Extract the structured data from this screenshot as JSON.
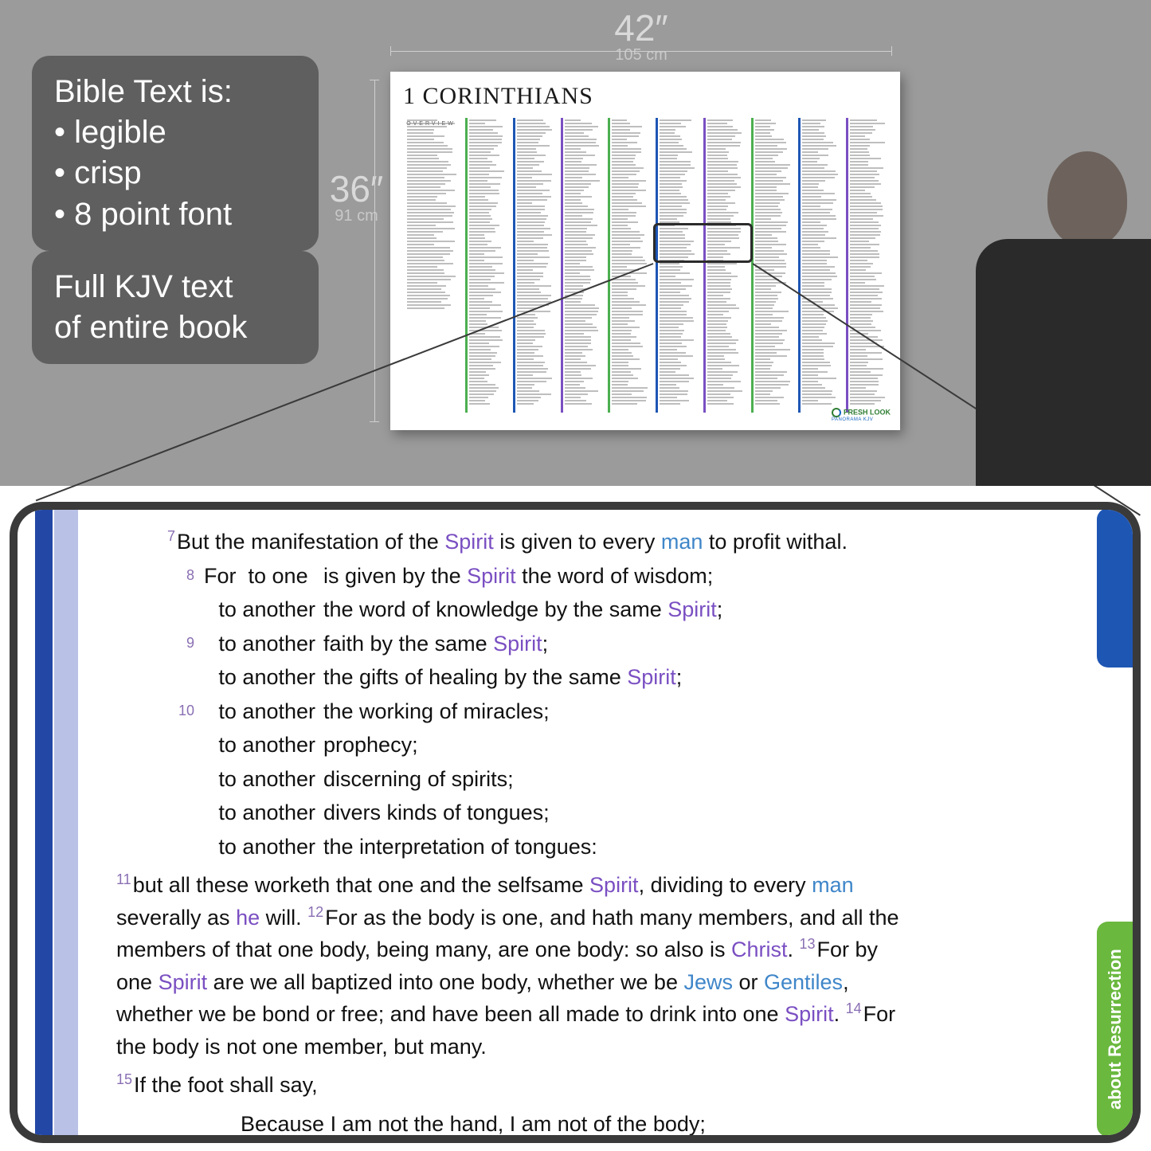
{
  "colors": {
    "scene_bg": "#9b9b9b",
    "callout_bg": "#5f5f5f",
    "callout_text": "#ffffff",
    "dim_text": "#d9d9d9",
    "dim_sub": "#c9c9c9",
    "ruler": "#cfcfcf",
    "poster_bg": "#ffffff",
    "poster_title": "#1a1a1a",
    "zoom_border": "#3a3a3a",
    "zoom_bg": "#ffffff",
    "stripe_dark": "#2347a5",
    "stripe_light": "#b9c2e6",
    "verse_num": "#8a6fb3",
    "word_spirit": "#7a4fc2",
    "word_blue": "#3f86c9",
    "tab_blue": "#1e56b4",
    "tab_green": "#6ab83e",
    "spines": [
      "#4caf50",
      "#1e56b4",
      "#7a4fc2",
      "#4caf50",
      "#1e56b4",
      "#7a4fc2",
      "#4caf50",
      "#1e56b4",
      "#7a4fc2"
    ]
  },
  "callouts": {
    "c1_title": "Bible Text is:",
    "c1_items": [
      "legible",
      "crisp",
      "8 point font"
    ],
    "c2_l1": "Full KJV text",
    "c2_l2": "of entire book"
  },
  "dimensions": {
    "width_in": "42″",
    "width_cm": "105 cm",
    "height_in": "36″",
    "height_cm": "91 cm"
  },
  "poster": {
    "title": "1 CORINTHIANS",
    "overview": "OVERVIEW",
    "logo_main": "FRESH LOOK",
    "logo_sub": "PANORAMA KJV"
  },
  "tabs": {
    "green": "about Resurrection"
  },
  "verses": {
    "v7_pre": "But the manifestation of the ",
    "v7_mid": " is given to every ",
    "v7_end": " to profit withal.",
    "for": "For",
    "r1a": "to one",
    "r1b_pre": "is given by the ",
    "r1b_post": " the word of wisdom;",
    "r2a": "to another",
    "r2b_pre": "the word of knowledge by the same ",
    "r2b_post": ";",
    "r3a": "to another",
    "r3b_pre": "faith by the same ",
    "r3b_post": ";",
    "r4a": "to another",
    "r4b_pre": "the gifts of healing by the same ",
    "r4b_post": ";",
    "r5a": "to another",
    "r5b": "the working of miracles;",
    "r6a": "to another",
    "r6b": "prophecy;",
    "r7a": "to another",
    "r7b": "discerning of spirits;",
    "r8a": "to another",
    "r8b": "divers kinds of tongues;",
    "r9a": "to another",
    "r9b": "the interpretation of tongues:",
    "v11a": "but all these worketh that one and the selfsame ",
    "v11b": ", dividing to every ",
    "v11c": " severally as ",
    "v11d": " will. ",
    "v12": "For as the body is one, and hath many members, and all the members of that one body, being many, are one body: so also is ",
    "v12end": ". ",
    "v13a": "For by one ",
    "v13b": " are we all baptized into one body, whether we be ",
    "v13c": " or ",
    "v13d": ", whether we be bond or free; and have been all made to drink into one ",
    "v13e": ". ",
    "v14": "For the body is not one member, but many.",
    "v15": "If the foot shall say,",
    "v15q": "Because I am not the hand, I am not of the body;",
    "word_spirit": "Spirit",
    "word_man": "man",
    "word_he": "he",
    "word_christ": "Christ",
    "word_jews": "Jews",
    "word_gentiles": "Gentiles",
    "n7": "7",
    "n8": "8",
    "n9": "9",
    "n10": "10",
    "n11": "11",
    "n12": "12",
    "n13": "13",
    "n14": "14",
    "n15": "15"
  }
}
